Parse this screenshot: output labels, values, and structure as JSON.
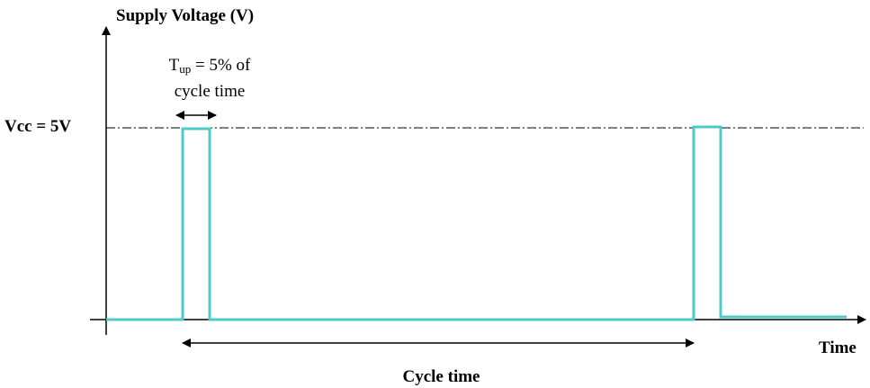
{
  "diagram": {
    "y_axis_label": "Supply Voltage (V)",
    "x_axis_label": "Time",
    "level_label": "Vcc = 5V",
    "pulse_width_label": {
      "symbol": "T",
      "subscript": "up",
      "line1_rest": " = 5% of",
      "line2": "cycle time"
    },
    "period_label": "Cycle time"
  },
  "colors": {
    "signal": "#4fc8c8",
    "axes": "#000000",
    "background": "#ffffff"
  }
}
